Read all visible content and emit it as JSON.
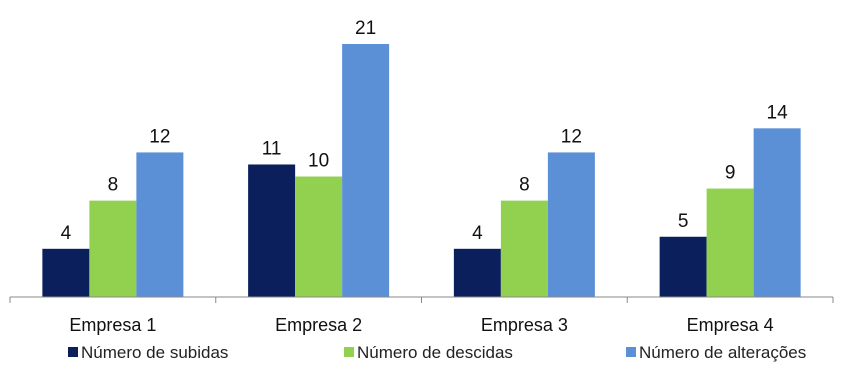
{
  "chart_data": {
    "type": "bar",
    "categories": [
      "Empresa 1",
      "Empresa 2",
      "Empresa 3",
      "Empresa 4"
    ],
    "series": [
      {
        "name": "Número de subidas",
        "values": [
          4,
          11,
          4,
          5
        ],
        "color": "#0b1f5c"
      },
      {
        "name": "Número de descidas",
        "values": [
          8,
          10,
          8,
          9
        ],
        "color": "#92d050"
      },
      {
        "name": "Número de alterações",
        "values": [
          12,
          21,
          12,
          14
        ],
        "color": "#5b8fd6"
      }
    ],
    "ylim": [
      0,
      21
    ],
    "grid": false,
    "legend_position": "bottom",
    "data_labels": true
  }
}
